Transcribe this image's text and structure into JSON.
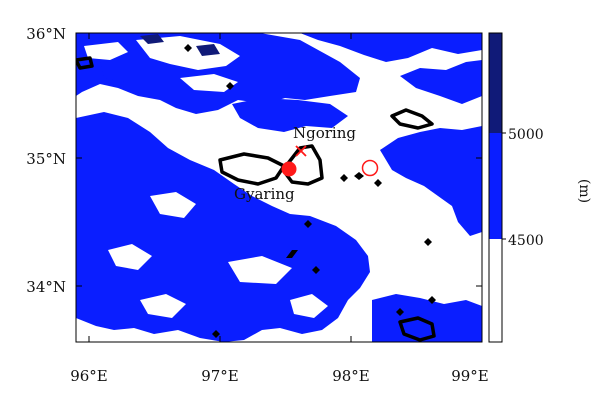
{
  "map": {
    "x_ticks": [
      "96°E",
      "97°E",
      "98°E",
      "99°E"
    ],
    "y_ticks": [
      "36°N",
      "35°N",
      "34°N"
    ],
    "lakes": {
      "north": "Ngoring",
      "south": "Gyaring"
    },
    "colorbar": {
      "ticks": [
        "5000",
        "4500"
      ],
      "unit": "(m)"
    },
    "colors": {
      "band_4500_5000": "#0a1eff",
      "band_above_5000": "#101a78",
      "below_4500": "#ffffff",
      "lake_outline": "#000000",
      "site_marker": "#ff1a1a"
    },
    "markers": [
      {
        "name": "station-dot",
        "shape": "filled-circle"
      },
      {
        "name": "station-cross",
        "shape": "x"
      },
      {
        "name": "station-open-circle",
        "shape": "open-circle"
      }
    ]
  }
}
